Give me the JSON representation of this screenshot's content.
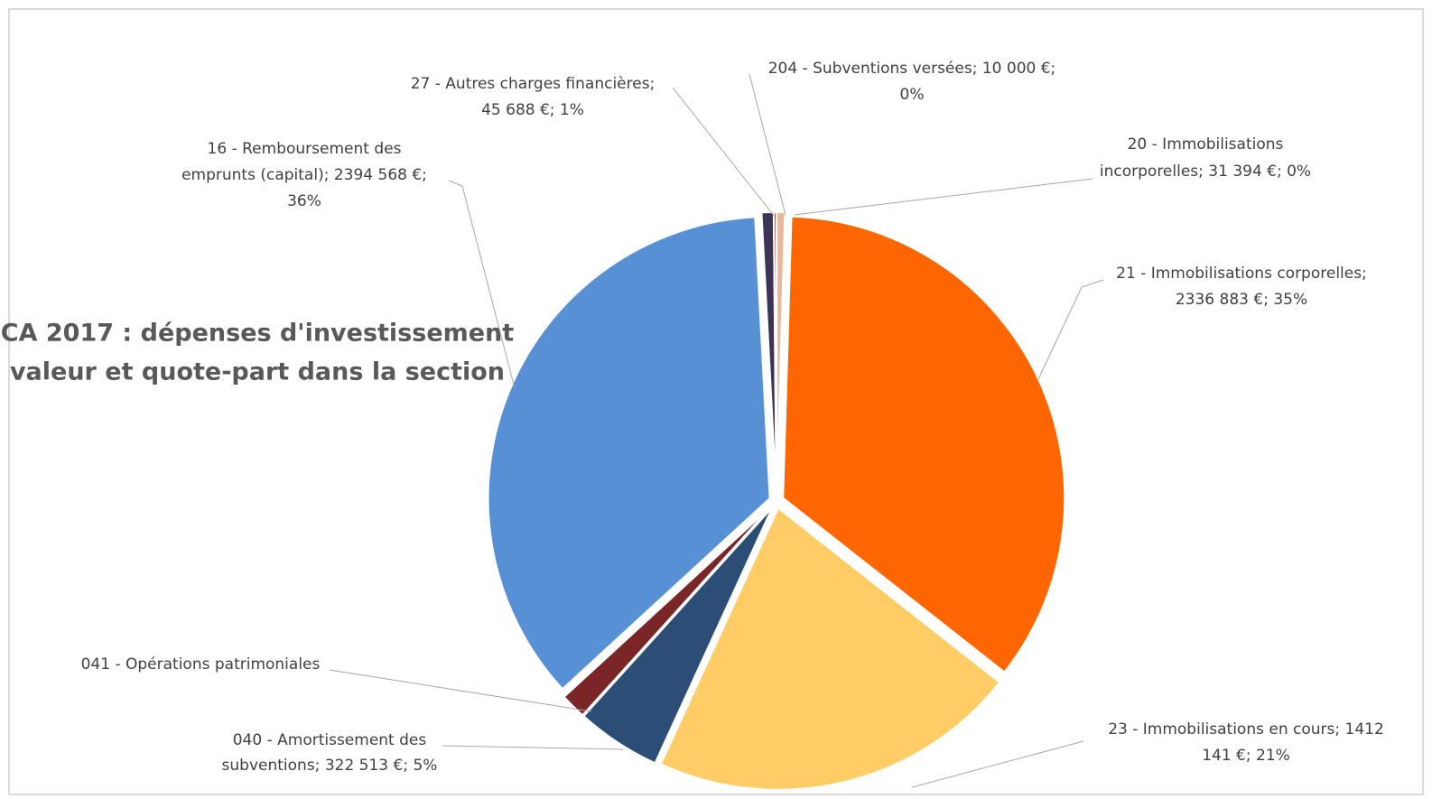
{
  "chart_data": {
    "type": "pie",
    "title": [
      "CA 2017 : dépenses d'investissement",
      "valeur et quote-part dans la section"
    ],
    "values": [
      45688,
      10000,
      31394,
      2336883,
      1412141,
      322513,
      98000,
      2394568
    ],
    "value_labels": [
      [
        "27 - Autres charges financières;",
        "45 688 €; 1%"
      ],
      [
        "204 - Subventions versées; 10 000 €;",
        "0%"
      ],
      [
        "20 - Immobilisations",
        "incorporelles; 31 394 €; 0%"
      ],
      [
        "21 - Immobilisations corporelles;",
        "2336 883 €; 35%"
      ],
      [
        "23 - Immobilisations en cours; 1412",
        "141 €; 21%"
      ],
      [
        "040 - Amortissement des",
        "subventions; 322 513 €; 5%"
      ],
      [
        "041 - Opérations patrimoniales"
      ],
      [
        "16 - Remboursement des",
        "emprunts (capital); 2394 568 €;",
        "36%"
      ]
    ],
    "colors": [
      "#3d3354",
      "#c0392b",
      "#e9b79a",
      "#ff6600",
      "#ffcc66",
      "#2c4d76",
      "#7a2626",
      "#5890d6"
    ]
  }
}
